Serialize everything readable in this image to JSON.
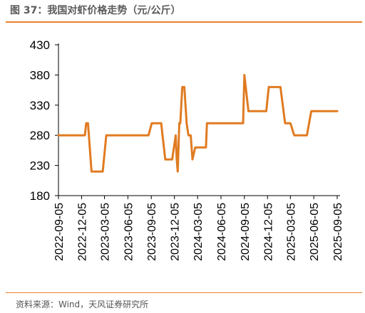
{
  "header": {
    "title": "图 37：我国对虾价格走势（元/公斤）"
  },
  "footer": {
    "source": "资料来源：Wind，天风证券研究所"
  },
  "colors": {
    "line": "#e07b21",
    "rule": "#e8822e",
    "axis": "#000000"
  },
  "chart_data": {
    "type": "line",
    "title": "图 37：我国对虾价格走势（元/公斤）",
    "xlabel": "",
    "ylabel": "",
    "ylim": [
      180,
      430
    ],
    "yticks": [
      "180",
      "230",
      "280",
      "330",
      "380",
      "430"
    ],
    "xlim": [
      "2022-09-05",
      "2025-09-05"
    ],
    "xticks": [
      "2022-09-05",
      "2022-12-05",
      "2023-03-05",
      "2023-06-05",
      "2023-09-05",
      "2023-12-05",
      "2024-03-05",
      "2024-06-05",
      "2024-09-05",
      "2024-12-05",
      "2025-03-05",
      "2025-06-05",
      "2025-09-05"
    ],
    "grid": false,
    "legend": "none",
    "series": [
      {
        "x": [
          "2022-09-05",
          "2022-12-18",
          "2022-12-23",
          "2022-12-30",
          "2023-01-13",
          "2023-02-26",
          "2023-03-12",
          "2023-03-17",
          "2023-05-12",
          "2023-08-25",
          "2023-09-07",
          "2023-10-14",
          "2023-10-30",
          "2023-11-26",
          "2023-12-10",
          "2023-12-14",
          "2023-12-18",
          "2023-12-24",
          "2023-12-28",
          "2024-01-05",
          "2024-01-13",
          "2024-01-22",
          "2024-01-29",
          "2024-02-07",
          "2024-02-14",
          "2024-02-25",
          "2024-03-05",
          "2024-04-07",
          "2024-04-11",
          "2024-08-31",
          "2024-09-05",
          "2024-09-21",
          "2024-11-30",
          "2024-12-10",
          "2025-01-25",
          "2025-02-12",
          "2025-03-05",
          "2025-03-20",
          "2025-05-09",
          "2025-05-26",
          "2025-09-05"
        ],
        "y": [
          280,
          280,
          300,
          300,
          220,
          220,
          280,
          280,
          280,
          280,
          300,
          300,
          240,
          240,
          280,
          240,
          220,
          300,
          300,
          360,
          360,
          300,
          280,
          280,
          240,
          260,
          260,
          260,
          300,
          300,
          380,
          320,
          320,
          360,
          360,
          300,
          300,
          280,
          280,
          320,
          320
        ]
      }
    ]
  }
}
